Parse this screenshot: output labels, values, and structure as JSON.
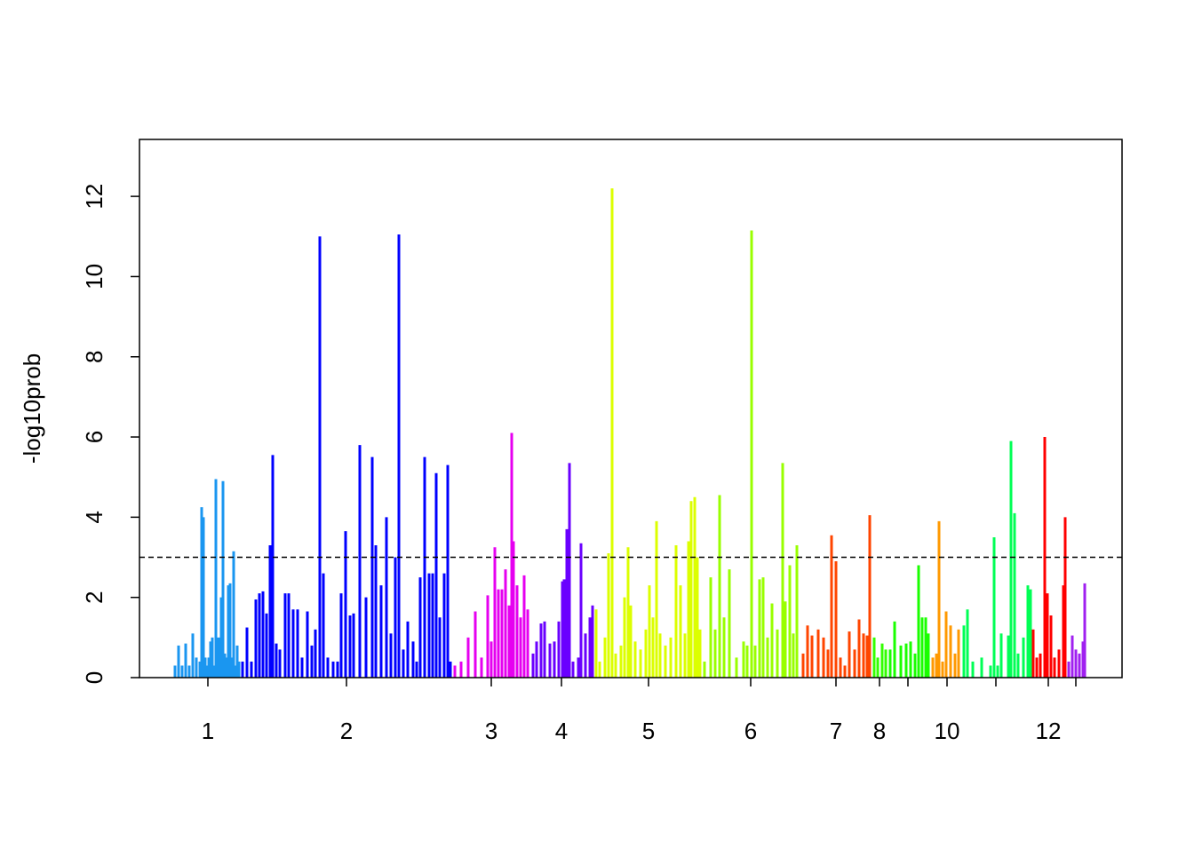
{
  "chart_data": {
    "type": "manhattan",
    "ylabel": "-log10prob",
    "xlim": [
      0,
      1106
    ],
    "ylim": [
      0,
      13.42
    ],
    "yticks": [
      0,
      2,
      4,
      6,
      8,
      10,
      12
    ],
    "xticks": [
      {
        "value": 77,
        "label": "1"
      },
      {
        "value": 233,
        "label": "2"
      },
      {
        "value": 396,
        "label": "3"
      },
      {
        "value": 475,
        "label": "4"
      },
      {
        "value": 573,
        "label": "5"
      },
      {
        "value": 688,
        "label": "6"
      },
      {
        "value": 784,
        "label": "7"
      },
      {
        "value": 833,
        "label": "8"
      },
      {
        "value": 865,
        "label": null
      },
      {
        "value": 909,
        "label": "10"
      },
      {
        "value": 964,
        "label": null
      },
      {
        "value": 1023,
        "label": "12"
      },
      {
        "value": 1054,
        "label": null
      }
    ],
    "threshold": 3,
    "series": [
      {
        "color": "#1a96f0",
        "x": [
          40,
          44,
          48,
          52,
          56,
          60,
          64,
          68,
          70,
          72,
          74,
          76,
          78,
          80,
          82,
          84,
          86,
          88,
          89,
          92,
          94,
          96,
          98,
          100,
          102,
          104,
          106,
          108,
          110,
          112
        ],
        "values": [
          0.3,
          0.8,
          0.3,
          0.85,
          0.3,
          1.1,
          0.5,
          0.4,
          4.25,
          4.0,
          0.5,
          0.3,
          0.5,
          0.9,
          1.0,
          0.3,
          4.95,
          0.5,
          1.0,
          2.0,
          4.9,
          0.6,
          0.5,
          2.3,
          2.35,
          0.5,
          3.15,
          0.3,
          0.8,
          0.4
        ]
      },
      {
        "color": "#0000ff",
        "x": [
          116,
          121,
          126,
          131,
          135,
          139,
          143,
          147,
          150,
          154,
          158,
          164,
          168,
          173,
          178,
          183,
          189,
          194,
          198,
          203,
          207,
          212,
          218,
          223,
          227,
          232,
          237,
          241,
          248,
          255,
          262,
          266,
          272,
          278,
          283,
          288,
          292,
          297,
          302,
          308,
          312,
          316,
          321,
          326,
          330,
          334,
          338,
          343,
          347,
          350
        ],
        "values": [
          0.4,
          1.25,
          0.4,
          1.95,
          2.1,
          2.15,
          1.6,
          3.3,
          5.55,
          0.85,
          0.7,
          2.1,
          2.1,
          1.7,
          1.7,
          0.5,
          1.65,
          0.8,
          1.2,
          11.0,
          2.6,
          0.5,
          0.4,
          0.4,
          2.1,
          3.65,
          1.55,
          1.6,
          5.8,
          2.0,
          5.5,
          3.3,
          2.3,
          4.0,
          1.1,
          3.0,
          11.05,
          0.7,
          1.4,
          0.9,
          0.4,
          2.5,
          5.5,
          2.6,
          2.6,
          5.1,
          1.5,
          2.6,
          5.3,
          0.4
        ]
      },
      {
        "color": "#e600f0",
        "x": [
          355,
          362,
          370,
          378,
          385,
          392,
          396,
          400,
          404,
          408,
          412,
          416,
          419,
          421,
          425,
          429,
          433,
          437
        ],
        "values": [
          0.3,
          0.4,
          1.0,
          1.65,
          0.5,
          2.05,
          0.9,
          3.25,
          2.2,
          2.2,
          2.7,
          1.8,
          6.1,
          3.4,
          2.3,
          1.5,
          2.55,
          1.7
        ]
      },
      {
        "color": "#6a00ff",
        "x": [
          443,
          447,
          452,
          456,
          462,
          467,
          472,
          476,
          478,
          481,
          484,
          488,
          494,
          497,
          502,
          507,
          510
        ],
        "values": [
          0.6,
          0.9,
          1.35,
          1.4,
          0.85,
          0.9,
          1.4,
          2.4,
          2.45,
          3.7,
          5.35,
          0.4,
          0.5,
          3.35,
          1.1,
          1.5,
          1.8
        ]
      },
      {
        "color": "#dcff00",
        "x": [
          514,
          518,
          524,
          528,
          532,
          536,
          542,
          546,
          550,
          553,
          558,
          564,
          570,
          574,
          578,
          582,
          586,
          592,
          598,
          604,
          609,
          614,
          618,
          621,
          625,
          628,
          631
        ],
        "values": [
          1.7,
          0.4,
          1.0,
          3.1,
          12.2,
          0.6,
          0.8,
          2.0,
          3.25,
          1.8,
          0.9,
          0.7,
          1.2,
          2.3,
          1.5,
          3.9,
          1.1,
          0.8,
          1.0,
          3.3,
          2.3,
          1.1,
          3.4,
          4.4,
          4.5,
          3.0,
          1.2
        ]
      },
      {
        "color": "#99ff00",
        "x": [
          636,
          643,
          648,
          653,
          658,
          664,
          672,
          680,
          684,
          689,
          693,
          698,
          702,
          707,
          712,
          718,
          724,
          727,
          732,
          736,
          740
        ],
        "values": [
          0.4,
          2.5,
          1.2,
          4.55,
          1.5,
          2.7,
          0.5,
          0.9,
          0.8,
          11.15,
          0.8,
          2.45,
          2.5,
          1.0,
          1.85,
          1.2,
          5.35,
          1.9,
          2.8,
          1.1,
          3.3
        ]
      },
      {
        "color": "#ff4500",
        "x": [
          747,
          752,
          757,
          764,
          770,
          775,
          779,
          784,
          789,
          794,
          799,
          805,
          810,
          815,
          819,
          822
        ],
        "values": [
          0.6,
          1.3,
          1.05,
          1.2,
          1.0,
          0.7,
          3.55,
          2.9,
          0.5,
          0.3,
          1.15,
          0.7,
          1.45,
          1.1,
          1.05,
          4.05
        ]
      },
      {
        "color": "#33ff00",
        "x": [
          827,
          831,
          836,
          840
        ],
        "values": [
          1.0,
          0.5,
          0.85,
          0.7
        ]
      },
      {
        "color": "#1aff00",
        "x": [
          845,
          850,
          857,
          863,
          868,
          873,
          877,
          881,
          885,
          888
        ],
        "values": [
          0.7,
          1.4,
          0.8,
          0.85,
          0.9,
          0.6,
          2.8,
          1.5,
          1.5,
          1.1
        ]
      },
      {
        "color": "#ff9900",
        "x": [
          893,
          897,
          900,
          904,
          908,
          913,
          918,
          922
        ],
        "values": [
          0.5,
          0.6,
          3.9,
          0.4,
          1.65,
          1.3,
          0.6,
          1.2
        ]
      },
      {
        "color": "#00ff55",
        "x": [
          928,
          932,
          938,
          948,
          958,
          962,
          966,
          970,
          978,
          981,
          985,
          989,
          995,
          1000,
          1003
        ],
        "values": [
          1.3,
          1.7,
          0.4,
          0.5,
          0.3,
          3.5,
          0.3,
          1.1,
          1.05,
          5.9,
          4.1,
          0.6,
          1.0,
          2.3,
          2.2
        ]
      },
      {
        "color": "#ff0000",
        "x": [
          1006,
          1010,
          1014,
          1019,
          1022,
          1026,
          1030,
          1035,
          1040,
          1042
        ],
        "values": [
          1.2,
          0.5,
          0.6,
          6.0,
          2.1,
          1.55,
          0.5,
          0.7,
          2.3,
          4.0
        ]
      },
      {
        "color": "#a020f0",
        "x": [
          1046,
          1050,
          1054,
          1058,
          1062,
          1064
        ],
        "values": [
          0.4,
          1.05,
          0.7,
          0.6,
          0.9,
          2.35
        ]
      }
    ]
  }
}
